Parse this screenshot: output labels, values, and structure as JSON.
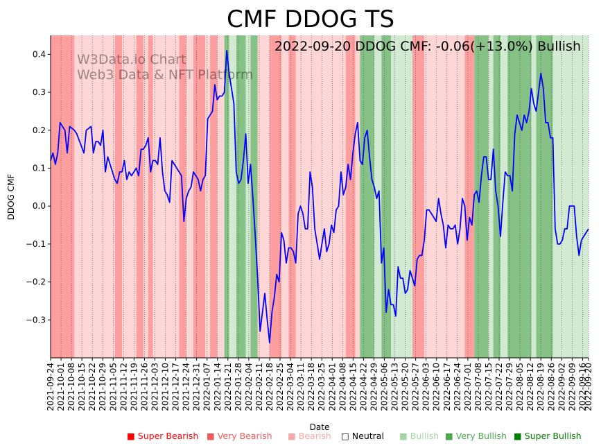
{
  "chart_data": {
    "type": "line",
    "title": "CMF DDOG TS",
    "annotation": "2022-09-20 DDOG CMF: -0.06(+13.0%) Bullish",
    "watermark": [
      "W3Data.io Chart",
      "Web3 Data & NFT Platform"
    ],
    "xlabel": "Date",
    "ylabel": "DDOG CMF",
    "ylim": [
      -0.4,
      0.45
    ],
    "yticks": [
      -0.3,
      -0.2,
      -0.1,
      0.0,
      0.1,
      0.2,
      0.3,
      0.4
    ],
    "ytick_labels": [
      "−0.3",
      "−0.2",
      "−0.1",
      "0.0",
      "0.1",
      "0.2",
      "0.3",
      "0.4"
    ],
    "x_start": "2021-09-24",
    "x_end": "2022-09-20",
    "xticks": [
      "2021-09-24",
      "2021-10-01",
      "2021-10-08",
      "2021-10-15",
      "2021-10-22",
      "2021-10-29",
      "2021-11-05",
      "2021-11-12",
      "2021-11-19",
      "2021-11-26",
      "2021-12-03",
      "2021-12-10",
      "2021-12-17",
      "2021-12-24",
      "2021-12-31",
      "2022-01-07",
      "2022-01-14",
      "2022-01-21",
      "2022-01-28",
      "2022-02-04",
      "2022-02-11",
      "2022-02-18",
      "2022-02-25",
      "2022-03-04",
      "2022-03-11",
      "2022-03-18",
      "2022-03-25",
      "2022-04-01",
      "2022-04-08",
      "2022-04-15",
      "2022-04-22",
      "2022-04-29",
      "2022-05-06",
      "2022-05-13",
      "2022-05-20",
      "2022-05-27",
      "2022-06-03",
      "2022-06-10",
      "2022-06-17",
      "2022-06-24",
      "2022-07-01",
      "2022-07-08",
      "2022-07-15",
      "2022-07-22",
      "2022-07-29",
      "2022-08-05",
      "2022-08-12",
      "2022-08-19",
      "2022-08-26",
      "2022-09-02",
      "2022-09-09",
      "2022-09-16",
      "2022-09-20"
    ],
    "line_color": "#0000ff",
    "series": [
      {
        "name": "DDOG CMF",
        "points": [
          [
            0,
            0.12
          ],
          [
            1,
            0.14
          ],
          [
            2,
            0.11
          ],
          [
            3,
            0.14
          ],
          [
            4,
            0.22
          ],
          [
            6,
            0.2
          ],
          [
            7,
            0.14
          ],
          [
            8,
            0.21
          ],
          [
            10,
            0.2
          ],
          [
            11,
            0.19
          ],
          [
            14,
            0.14
          ],
          [
            15,
            0.2
          ],
          [
            17,
            0.21
          ],
          [
            18,
            0.14
          ],
          [
            19,
            0.17
          ],
          [
            20,
            0.17
          ],
          [
            21,
            0.16
          ],
          [
            22,
            0.2
          ],
          [
            23,
            0.09
          ],
          [
            24,
            0.13
          ],
          [
            27,
            0.07
          ],
          [
            28,
            0.06
          ],
          [
            29,
            0.09
          ],
          [
            30,
            0.09
          ],
          [
            31,
            0.12
          ],
          [
            32,
            0.07
          ],
          [
            33,
            0.09
          ],
          [
            34,
            0.08
          ],
          [
            35,
            0.09
          ],
          [
            36,
            0.1
          ],
          [
            37,
            0.08
          ],
          [
            38,
            0.15
          ],
          [
            39,
            0.15
          ],
          [
            40,
            0.16
          ],
          [
            41,
            0.18
          ],
          [
            42,
            0.09
          ],
          [
            43,
            0.12
          ],
          [
            44,
            0.12
          ],
          [
            45,
            0.11
          ],
          [
            46,
            0.18
          ],
          [
            47,
            0.09
          ],
          [
            48,
            0.04
          ],
          [
            49,
            0.03
          ],
          [
            50,
            0.01
          ],
          [
            51,
            0.12
          ],
          [
            53,
            0.1
          ],
          [
            55,
            0.08
          ],
          [
            56,
            -0.04
          ],
          [
            57,
            0.02
          ],
          [
            58,
            0.04
          ],
          [
            59,
            0.05
          ],
          [
            60,
            0.09
          ],
          [
            61,
            0.08
          ],
          [
            62,
            0.07
          ],
          [
            63,
            0.04
          ],
          [
            64,
            0.07
          ],
          [
            65,
            0.08
          ],
          [
            66,
            0.23
          ],
          [
            67,
            0.24
          ],
          [
            68,
            0.25
          ],
          [
            69,
            0.32
          ],
          [
            70,
            0.28
          ],
          [
            71,
            0.29
          ],
          [
            72,
            0.29
          ],
          [
            73,
            0.3
          ],
          [
            74,
            0.41
          ],
          [
            75,
            0.35
          ],
          [
            76,
            0.31
          ],
          [
            77,
            0.27
          ],
          [
            78,
            0.09
          ],
          [
            79,
            0.06
          ],
          [
            80,
            0.07
          ],
          [
            81,
            0.12
          ],
          [
            82,
            0.19
          ],
          [
            83,
            0.06
          ],
          [
            84,
            0.11
          ],
          [
            85,
            0.02
          ],
          [
            86,
            -0.08
          ],
          [
            87,
            -0.19
          ],
          [
            88,
            -0.33
          ],
          [
            89,
            -0.28
          ],
          [
            90,
            -0.23
          ],
          [
            91,
            -0.3
          ],
          [
            92,
            -0.36
          ],
          [
            93,
            -0.28
          ],
          [
            94,
            -0.24
          ],
          [
            95,
            -0.18
          ],
          [
            96,
            -0.2
          ],
          [
            97,
            -0.07
          ],
          [
            98,
            -0.09
          ],
          [
            99,
            -0.15
          ],
          [
            100,
            -0.11
          ],
          [
            101,
            -0.11
          ],
          [
            102,
            -0.12
          ],
          [
            103,
            -0.15
          ],
          [
            104,
            -0.02
          ],
          [
            105,
            0.0
          ],
          [
            106,
            -0.02
          ],
          [
            107,
            -0.06
          ],
          [
            108,
            -0.06
          ],
          [
            109,
            0.09
          ],
          [
            110,
            0.05
          ],
          [
            111,
            -0.06
          ],
          [
            112,
            -0.1
          ],
          [
            113,
            -0.14
          ],
          [
            114,
            -0.1
          ],
          [
            115,
            -0.06
          ],
          [
            116,
            -0.12
          ],
          [
            117,
            -0.1
          ],
          [
            118,
            -0.05
          ],
          [
            119,
            -0.07
          ],
          [
            120,
            -0.01
          ],
          [
            121,
            0.0
          ],
          [
            122,
            0.09
          ],
          [
            123,
            0.03
          ],
          [
            124,
            0.05
          ],
          [
            125,
            0.11
          ],
          [
            126,
            0.07
          ],
          [
            127,
            0.14
          ],
          [
            128,
            0.19
          ],
          [
            129,
            0.22
          ],
          [
            130,
            0.12
          ],
          [
            131,
            0.11
          ],
          [
            132,
            0.18
          ],
          [
            133,
            0.2
          ],
          [
            134,
            0.13
          ],
          [
            135,
            0.07
          ],
          [
            136,
            0.05
          ],
          [
            137,
            0.02
          ],
          [
            138,
            0.04
          ],
          [
            139,
            -0.15
          ],
          [
            140,
            -0.11
          ],
          [
            141,
            -0.28
          ],
          [
            142,
            -0.22
          ],
          [
            143,
            -0.26
          ],
          [
            144,
            -0.26
          ],
          [
            145,
            -0.29
          ],
          [
            146,
            -0.16
          ],
          [
            147,
            -0.19
          ],
          [
            148,
            -0.19
          ],
          [
            149,
            -0.23
          ],
          [
            150,
            -0.22
          ],
          [
            151,
            -0.17
          ],
          [
            152,
            -0.19
          ],
          [
            153,
            -0.21
          ],
          [
            154,
            -0.14
          ],
          [
            155,
            -0.13
          ],
          [
            156,
            -0.13
          ],
          [
            157,
            -0.09
          ],
          [
            158,
            -0.01
          ],
          [
            159,
            -0.01
          ],
          [
            160,
            -0.02
          ],
          [
            161,
            -0.03
          ],
          [
            162,
            -0.04
          ],
          [
            163,
            0.02
          ],
          [
            164,
            -0.02
          ],
          [
            165,
            -0.05
          ],
          [
            166,
            -0.11
          ],
          [
            167,
            -0.05
          ],
          [
            168,
            -0.06
          ],
          [
            169,
            -0.06
          ],
          [
            170,
            -0.05
          ],
          [
            171,
            -0.1
          ],
          [
            172,
            -0.06
          ],
          [
            173,
            0.02
          ],
          [
            174,
            0.0
          ],
          [
            175,
            -0.09
          ],
          [
            176,
            -0.03
          ],
          [
            177,
            -0.05
          ],
          [
            178,
            0.03
          ],
          [
            179,
            0.04
          ],
          [
            180,
            0.01
          ],
          [
            181,
            0.08
          ],
          [
            182,
            0.13
          ],
          [
            183,
            0.13
          ],
          [
            184,
            0.07
          ],
          [
            185,
            0.07
          ],
          [
            186,
            0.15
          ],
          [
            187,
            0.04
          ],
          [
            188,
            0.0
          ],
          [
            189,
            -0.08
          ],
          [
            190,
            0.01
          ],
          [
            191,
            0.09
          ],
          [
            192,
            0.08
          ],
          [
            193,
            0.08
          ],
          [
            194,
            0.04
          ],
          [
            195,
            0.19
          ],
          [
            196,
            0.24
          ],
          [
            197,
            0.22
          ],
          [
            198,
            0.2
          ],
          [
            199,
            0.24
          ],
          [
            200,
            0.22
          ],
          [
            201,
            0.25
          ],
          [
            202,
            0.31
          ],
          [
            203,
            0.27
          ],
          [
            204,
            0.25
          ],
          [
            205,
            0.3
          ],
          [
            206,
            0.35
          ],
          [
            207,
            0.31
          ],
          [
            208,
            0.22
          ],
          [
            209,
            0.22
          ],
          [
            210,
            0.18
          ],
          [
            211,
            0.18
          ],
          [
            212,
            -0.06
          ],
          [
            213,
            -0.1
          ],
          [
            214,
            -0.1
          ],
          [
            215,
            -0.09
          ],
          [
            216,
            -0.06
          ],
          [
            217,
            -0.06
          ],
          [
            218,
            0.0
          ],
          [
            219,
            0.0
          ],
          [
            220,
            0.0
          ],
          [
            221,
            -0.08
          ],
          [
            222,
            -0.13
          ],
          [
            223,
            -0.09
          ],
          [
            224,
            -0.08
          ],
          [
            226,
            -0.06
          ]
        ]
      }
    ],
    "x_range": [
      0,
      226
    ],
    "signal_bands": [
      {
        "from": 0,
        "to": 10,
        "level": "very_bearish"
      },
      {
        "from": 10,
        "to": 17,
        "level": "bearish"
      },
      {
        "from": 17,
        "to": 27,
        "level": "bearish"
      },
      {
        "from": 27,
        "to": 30,
        "level": "very_bearish"
      },
      {
        "from": 30,
        "to": 36,
        "level": "bearish"
      },
      {
        "from": 36,
        "to": 39,
        "level": "very_bearish"
      },
      {
        "from": 39,
        "to": 41,
        "level": "bearish"
      },
      {
        "from": 41,
        "to": 43,
        "level": "very_bearish"
      },
      {
        "from": 43,
        "to": 48,
        "level": "bearish"
      },
      {
        "from": 48,
        "to": 54,
        "level": "bearish"
      },
      {
        "from": 54,
        "to": 57,
        "level": "very_bearish"
      },
      {
        "from": 57,
        "to": 60,
        "level": "bearish"
      },
      {
        "from": 60,
        "to": 65,
        "level": "very_bearish"
      },
      {
        "from": 65,
        "to": 67,
        "level": "bearish"
      },
      {
        "from": 67,
        "to": 70,
        "level": "very_bearish"
      },
      {
        "from": 70,
        "to": 73,
        "level": "bearish"
      },
      {
        "from": 73,
        "to": 75,
        "level": "very_bullish"
      },
      {
        "from": 75,
        "to": 78,
        "level": "bullish"
      },
      {
        "from": 78,
        "to": 82,
        "level": "very_bullish"
      },
      {
        "from": 82,
        "to": 84,
        "level": "bullish"
      },
      {
        "from": 84,
        "to": 87,
        "level": "very_bullish"
      },
      {
        "from": 87,
        "to": 92,
        "level": "bearish"
      },
      {
        "from": 92,
        "to": 97,
        "level": "very_bearish"
      },
      {
        "from": 97,
        "to": 100,
        "level": "bearish"
      },
      {
        "from": 100,
        "to": 103,
        "level": "very_bearish"
      },
      {
        "from": 103,
        "to": 116,
        "level": "bearish"
      },
      {
        "from": 116,
        "to": 124,
        "level": "bearish"
      },
      {
        "from": 124,
        "to": 128,
        "level": "very_bearish"
      },
      {
        "from": 128,
        "to": 130,
        "level": "bearish"
      },
      {
        "from": 130,
        "to": 136,
        "level": "very_bullish"
      },
      {
        "from": 136,
        "to": 139,
        "level": "bullish"
      },
      {
        "from": 139,
        "to": 143,
        "level": "very_bullish"
      },
      {
        "from": 143,
        "to": 152,
        "level": "bullish"
      },
      {
        "from": 152,
        "to": 157,
        "level": "very_bearish"
      },
      {
        "from": 157,
        "to": 162,
        "level": "bearish"
      },
      {
        "from": 162,
        "to": 174,
        "level": "bearish"
      },
      {
        "from": 174,
        "to": 178,
        "level": "very_bearish"
      },
      {
        "from": 178,
        "to": 184,
        "level": "very_bullish"
      },
      {
        "from": 184,
        "to": 186,
        "level": "bullish"
      },
      {
        "from": 186,
        "to": 189,
        "level": "very_bullish"
      },
      {
        "from": 189,
        "to": 192,
        "level": "bullish"
      },
      {
        "from": 192,
        "to": 196,
        "level": "very_bullish"
      },
      {
        "from": 196,
        "to": 202,
        "level": "very_bullish"
      },
      {
        "from": 202,
        "to": 204,
        "level": "bullish"
      },
      {
        "from": 204,
        "to": 211,
        "level": "very_bullish"
      },
      {
        "from": 211,
        "to": 226,
        "level": "bullish"
      }
    ],
    "legend": [
      {
        "label": "Super Bearish",
        "marker": "■",
        "color": "#ff0000"
      },
      {
        "label": "Very Bearish",
        "marker": "■",
        "color": "#f25a5a"
      },
      {
        "label": "Bearish",
        "marker": "■",
        "color": "#f5aaaa"
      },
      {
        "label": "Neutral",
        "marker": "□",
        "color": "#000000"
      },
      {
        "label": "Bullish",
        "marker": "■",
        "color": "#a5d4a5"
      },
      {
        "label": "Very Bullish",
        "marker": "■",
        "color": "#4aa84a"
      },
      {
        "label": "Super Bullish",
        "marker": "■",
        "color": "#008000"
      }
    ],
    "band_colors": {
      "bearish": "#ffd6d6",
      "very_bearish": "#ff9e9e",
      "bullish": "#d2ead2",
      "very_bullish": "#86c186"
    }
  }
}
